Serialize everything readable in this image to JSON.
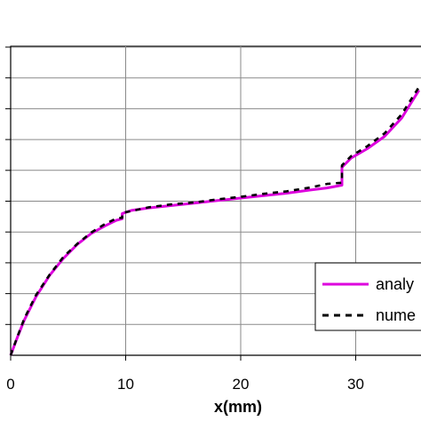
{
  "chart_data": {
    "type": "line",
    "xlabel": "x(mm)",
    "ylabel": "",
    "xlim": [
      0,
      35.5
    ],
    "ylim": [
      0,
      10.2
    ],
    "x_ticks": [
      "0",
      "10",
      "20",
      "30"
    ],
    "grid": true,
    "legend": {
      "placement": "lower-right",
      "entries": [
        "analy",
        "nume"
      ]
    },
    "series": [
      {
        "name": "analy",
        "color": "#dd00dd",
        "style": "solid",
        "x": [
          0,
          0.6,
          1.2,
          2.2,
          3.4,
          4.6,
          5.8,
          7.0,
          8.2,
          9.2,
          9.7,
          9.7,
          10.5,
          12,
          14,
          16,
          18,
          20,
          22,
          24,
          26,
          27.5,
          28.8,
          28.8,
          29.6,
          31,
          32.5,
          34,
          35.5
        ],
        "y": [
          0,
          0.6,
          1.15,
          1.9,
          2.6,
          3.15,
          3.6,
          3.95,
          4.2,
          4.38,
          4.43,
          4.6,
          4.7,
          4.78,
          4.86,
          4.94,
          5.02,
          5.1,
          5.18,
          5.26,
          5.36,
          5.43,
          5.52,
          6.1,
          6.4,
          6.7,
          7.1,
          7.7,
          8.6
        ]
      },
      {
        "name": "nume",
        "color": "#000000",
        "style": "dashed",
        "x": [
          0,
          0.6,
          1.2,
          2.2,
          3.4,
          4.6,
          5.8,
          7.0,
          8.2,
          9.2,
          9.7,
          9.7,
          10.5,
          12,
          14,
          16,
          18,
          20,
          22,
          24,
          26,
          27.5,
          28.8,
          28.8,
          29.6,
          31,
          32.5,
          34,
          35.5
        ],
        "y": [
          0,
          0.62,
          1.2,
          1.95,
          2.62,
          3.2,
          3.62,
          3.98,
          4.26,
          4.44,
          4.46,
          4.62,
          4.68,
          4.8,
          4.9,
          4.96,
          5.06,
          5.14,
          5.24,
          5.32,
          5.44,
          5.56,
          5.6,
          6.16,
          6.46,
          6.78,
          7.2,
          7.82,
          8.7
        ]
      }
    ]
  }
}
